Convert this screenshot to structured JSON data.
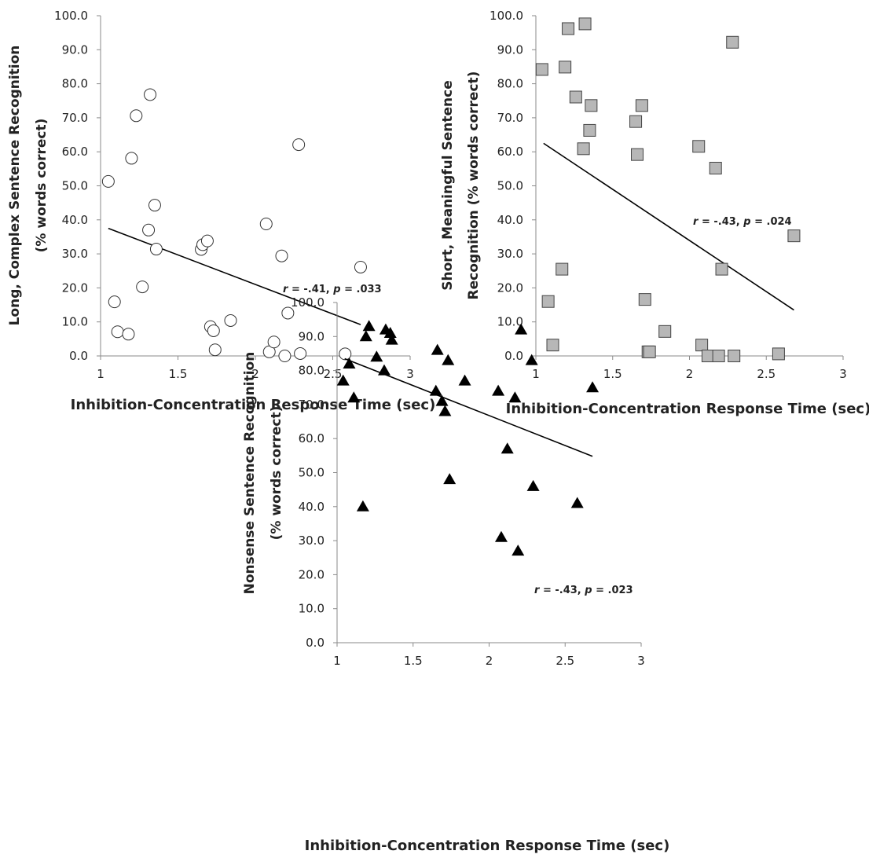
{
  "chart_data": [
    {
      "type": "scatter",
      "marker": "circle-open",
      "xlabel": "Inhibition-Concentration Response Time (sec)",
      "ylabel_lines": [
        "Long, Complex Sentence Recognition",
        "(% words correct)"
      ],
      "xlim": [
        1,
        3
      ],
      "ylim": [
        0,
        100
      ],
      "xticks": [
        "1",
        "1.5",
        "2",
        "2.5",
        "3"
      ],
      "yticks": [
        "0.0",
        "10.0",
        "20.0",
        "30.0",
        "40.0",
        "50.0",
        "60.0",
        "70.0",
        "80.0",
        "90.0",
        "100.0"
      ],
      "annotation": {
        "r_label": "r",
        "r_text": " = -.41, ",
        "p_label": "p",
        "p_text": " = .033"
      },
      "trendline": {
        "x": [
          1.05,
          2.68
        ],
        "y": [
          37.5,
          9.2
        ]
      },
      "points": [
        [
          1.05,
          51.3
        ],
        [
          1.09,
          15.9
        ],
        [
          1.11,
          7.1
        ],
        [
          1.18,
          6.4
        ],
        [
          1.2,
          58.1
        ],
        [
          1.23,
          70.6
        ],
        [
          1.27,
          20.3
        ],
        [
          1.31,
          37.0
        ],
        [
          1.32,
          76.8
        ],
        [
          1.35,
          44.3
        ],
        [
          1.36,
          31.4
        ],
        [
          1.65,
          31.3
        ],
        [
          1.66,
          32.7
        ],
        [
          1.69,
          33.8
        ],
        [
          1.71,
          8.6
        ],
        [
          1.73,
          7.4
        ],
        [
          1.74,
          1.8
        ],
        [
          1.84,
          10.4
        ],
        [
          2.07,
          38.8
        ],
        [
          2.09,
          1.2
        ],
        [
          2.12,
          4.1
        ],
        [
          2.17,
          29.4
        ],
        [
          2.19,
          0.0
        ],
        [
          2.21,
          12.6
        ],
        [
          2.28,
          62.1
        ],
        [
          2.29,
          0.7
        ],
        [
          2.58,
          0.6
        ],
        [
          2.68,
          26.1
        ]
      ]
    },
    {
      "type": "scatter",
      "marker": "square-gray",
      "xlabel": "Inhibition-Concentration Response Time (sec)",
      "ylabel_lines": [
        "Short, Meaningful Sentence",
        "Recognition (% words correct)"
      ],
      "xlim": [
        1,
        3
      ],
      "ylim": [
        0,
        100
      ],
      "xticks": [
        "1",
        "1.5",
        "2",
        "2.5",
        "3"
      ],
      "yticks": [
        "0.0",
        "10.0",
        "20.0",
        "30.0",
        "40.0",
        "50.0",
        "60.0",
        "70.0",
        "80.0",
        "90.0",
        "100.0"
      ],
      "annotation": {
        "r_label": "r",
        "r_text": " = -.43, ",
        "p_label": "p",
        "p_text": " = .024"
      },
      "trendline": {
        "x": [
          1.05,
          2.68
        ],
        "y": [
          62.5,
          13.5
        ]
      },
      "points": [
        [
          1.04,
          84.2
        ],
        [
          1.08,
          16.0
        ],
        [
          1.11,
          3.2
        ],
        [
          1.17,
          25.5
        ],
        [
          1.19,
          84.9
        ],
        [
          1.21,
          96.2
        ],
        [
          1.26,
          76.1
        ],
        [
          1.31,
          60.9
        ],
        [
          1.32,
          97.6
        ],
        [
          1.35,
          66.3
        ],
        [
          1.36,
          73.6
        ],
        [
          1.65,
          68.9
        ],
        [
          1.66,
          59.2
        ],
        [
          1.69,
          73.6
        ],
        [
          1.71,
          16.6
        ],
        [
          1.73,
          1.2
        ],
        [
          1.74,
          1.2
        ],
        [
          1.84,
          7.2
        ],
        [
          2.06,
          61.6
        ],
        [
          2.08,
          3.2
        ],
        [
          2.12,
          0.0
        ],
        [
          2.17,
          55.2
        ],
        [
          2.19,
          0.0
        ],
        [
          2.21,
          25.5
        ],
        [
          2.28,
          92.2
        ],
        [
          2.29,
          0.0
        ],
        [
          2.58,
          0.6
        ],
        [
          2.68,
          35.3
        ]
      ]
    },
    {
      "type": "scatter",
      "marker": "triangle-filled",
      "xlabel": "Inhibition-Concentration Response Time (sec)",
      "ylabel_lines": [
        "Nonsense Sentence Recognition",
        "(% words correct)"
      ],
      "xlim": [
        1,
        3
      ],
      "ylim": [
        0,
        100
      ],
      "xticks": [
        "1",
        "1.5",
        "2",
        "2.5",
        "3"
      ],
      "yticks": [
        "0.0",
        "10.0",
        "20.0",
        "30.0",
        "40.0",
        "50.0",
        "60.0",
        "70.0",
        "80.0",
        "90.0",
        "100.0"
      ],
      "annotation": {
        "r_label": "r",
        "r_text": " = -.43, ",
        "p_label": "p",
        "p_text": " = .023"
      },
      "trendline": {
        "x": [
          1.05,
          2.68
        ],
        "y": [
          83.5,
          54.8
        ]
      },
      "points": [
        [
          1.04,
          77.0
        ],
        [
          1.08,
          82.0
        ],
        [
          1.11,
          72.0
        ],
        [
          1.17,
          40.0
        ],
        [
          1.19,
          90.0
        ],
        [
          1.21,
          93.0
        ],
        [
          1.26,
          84.0
        ],
        [
          1.31,
          80.0
        ],
        [
          1.32,
          92.0
        ],
        [
          1.35,
          91.0
        ],
        [
          1.36,
          89.0
        ],
        [
          1.65,
          74.0
        ],
        [
          1.66,
          86.0
        ],
        [
          1.69,
          71.0
        ],
        [
          1.71,
          68.0
        ],
        [
          1.73,
          83.0
        ],
        [
          1.74,
          48.0
        ],
        [
          1.84,
          77.0
        ],
        [
          2.06,
          74.0
        ],
        [
          2.08,
          31.0
        ],
        [
          2.12,
          57.0
        ],
        [
          2.17,
          72.0
        ],
        [
          2.19,
          27.0
        ],
        [
          2.21,
          92.0
        ],
        [
          2.28,
          83.0
        ],
        [
          2.29,
          46.0
        ],
        [
          2.58,
          41.0
        ],
        [
          2.68,
          75.0
        ]
      ]
    }
  ]
}
